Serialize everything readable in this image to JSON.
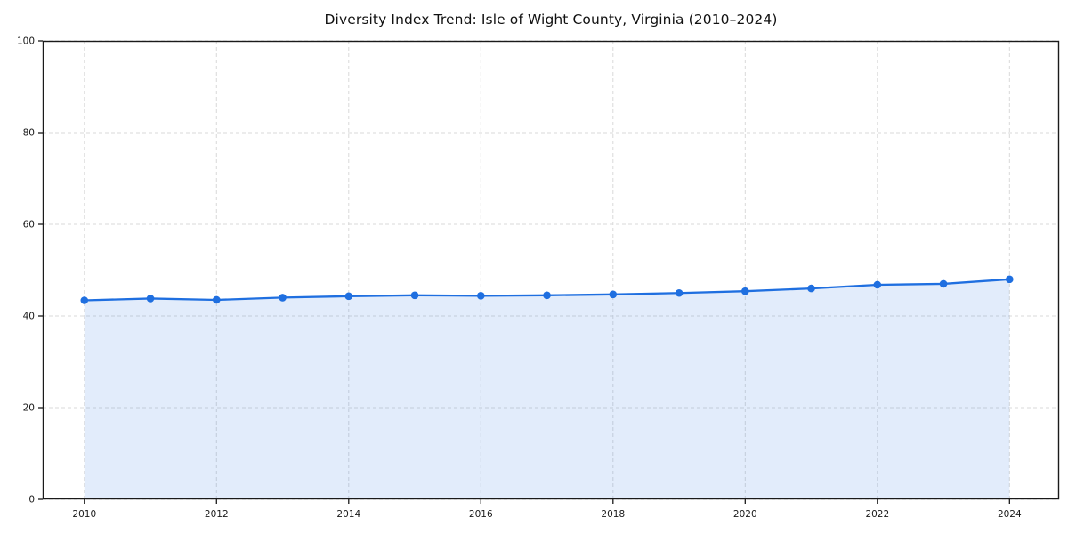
{
  "chart_data": {
    "type": "area",
    "title": "Diversity Index Trend: Isle of Wight County, Virginia (2010–2024)",
    "xlabel": "",
    "ylabel": "",
    "x": [
      2010,
      2011,
      2012,
      2013,
      2014,
      2015,
      2016,
      2017,
      2018,
      2019,
      2020,
      2021,
      2022,
      2023,
      2024
    ],
    "series": [
      {
        "name": "Diversity Index",
        "values": [
          43.4,
          43.8,
          43.5,
          44.0,
          44.3,
          44.5,
          44.4,
          44.5,
          44.7,
          45.0,
          45.4,
          46.0,
          46.8,
          47.0,
          48.0
        ]
      }
    ],
    "xticks": [
      2010,
      2012,
      2014,
      2016,
      2018,
      2020,
      2022,
      2024
    ],
    "yticks": [
      0,
      20,
      40,
      60,
      80,
      100
    ],
    "xlim": [
      2009.37,
      2024.75
    ],
    "ylim": [
      0,
      100
    ],
    "grid": true,
    "legend": "none",
    "colors": {
      "line": "#1f6fe0",
      "marker": "#1f6fe0",
      "fill": "rgba(31, 111, 224, 0.13)",
      "gridline": "#d9d9d9",
      "spine": "#1a1a1a",
      "tick_text": "#1a1a1a",
      "background": "#ffffff"
    }
  }
}
